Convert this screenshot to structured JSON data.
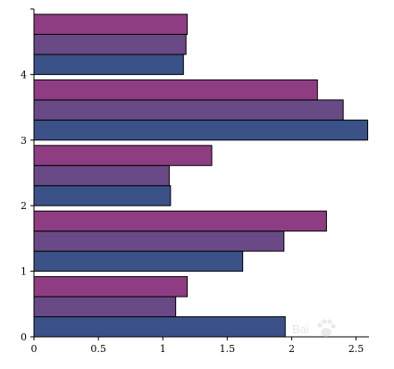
{
  "chart_data": {
    "type": "bar",
    "orientation": "horizontal",
    "categories": [
      "0",
      "1",
      "2",
      "3",
      "4"
    ],
    "series": [
      {
        "values": [
          1.95,
          1.62,
          1.06,
          2.59,
          1.16
        ],
        "color": "#3b5288"
      },
      {
        "values": [
          1.1,
          1.94,
          1.05,
          2.4,
          1.18
        ],
        "color": "#6a4a86"
      },
      {
        "values": [
          1.19,
          2.27,
          1.38,
          2.2,
          1.19
        ],
        "color": "#8e3d82"
      }
    ],
    "x_ticks": [
      "0",
      "0.5",
      "1",
      "1.5",
      "2",
      "2.5"
    ],
    "xlim": [
      0,
      2.6
    ],
    "title": "",
    "xlabel": "",
    "ylabel": "",
    "grid": false,
    "legend": "none"
  },
  "watermark": {
    "text": "Baidu经验",
    "lettering": "Bai",
    "icon": "paw-icon"
  }
}
